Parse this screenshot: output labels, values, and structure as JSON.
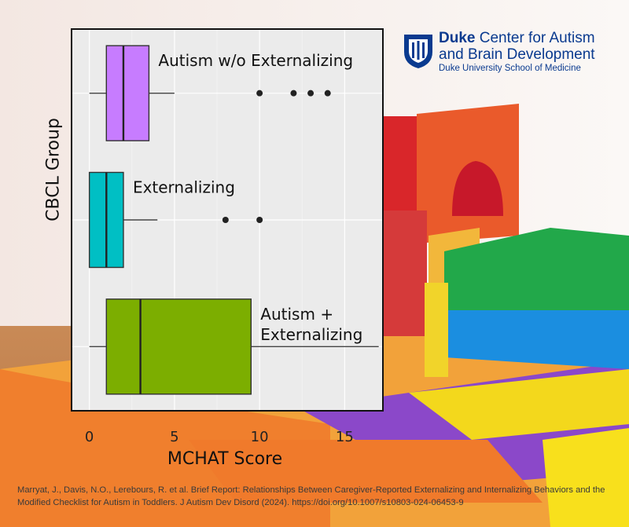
{
  "logo": {
    "org": "Duke",
    "line1_rest": "Center for Autism",
    "line2": "and Brain Development",
    "line3": "Duke University School of Medicine"
  },
  "citation": "Marryat, J., Davis, N.O., Lerebours, R. et al. Brief Report: Relationships Between Caregiver-Reported Externalizing and Internalizing Behaviors and the Modified Checklist for Autism in Toddlers. J Autism Dev Disord (2024). https://doi.org/10.1007/s10803-024-06453-9",
  "chart_data": {
    "type": "boxplot",
    "title": "",
    "xlabel": "MCHAT Score",
    "ylabel": "CBCL Group",
    "xlim": [
      -1,
      17.2
    ],
    "xticks": [
      0,
      5,
      10,
      15
    ],
    "grid": true,
    "series": [
      {
        "name": "Autism w/o Externalizing",
        "label_lines": [
          "Autism w/o Externalizing"
        ],
        "color": "#c77cff",
        "whisker_low": 0,
        "q1": 1,
        "median": 2,
        "q3": 3.5,
        "whisker_high": 5,
        "outliers": [
          10,
          12,
          13,
          14
        ]
      },
      {
        "name": "Externalizing",
        "label_lines": [
          "Externalizing"
        ],
        "color": "#00bfc4",
        "whisker_low": 0,
        "q1": 0,
        "median": 1,
        "q3": 2,
        "whisker_high": 4,
        "outliers": [
          8,
          10
        ]
      },
      {
        "name": "Autism + Externalizing",
        "label_lines": [
          "Autism +",
          "Externalizing"
        ],
        "color": "#7cae00",
        "whisker_low": 0,
        "q1": 1,
        "median": 3,
        "q3": 9.5,
        "whisker_high": 17,
        "outliers": []
      }
    ]
  }
}
